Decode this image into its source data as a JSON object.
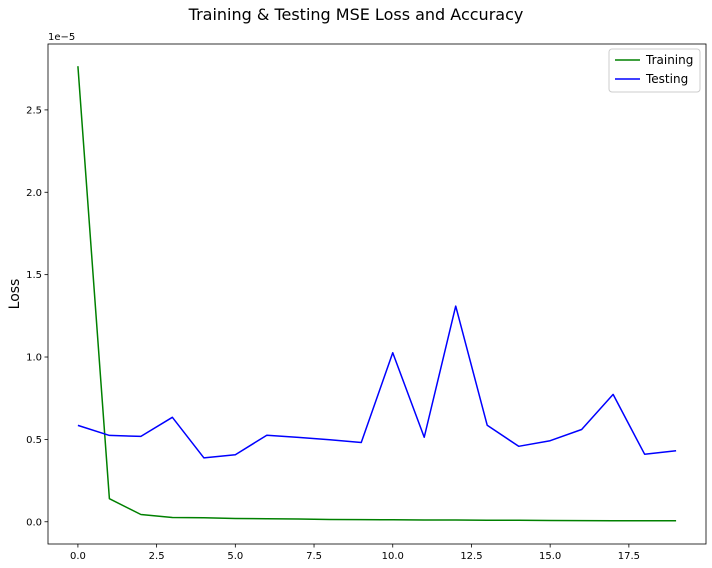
{
  "chart_data": {
    "type": "line",
    "title": "Training & Testing MSE Loss and Accuracy",
    "xlabel": "",
    "ylabel": "Loss",
    "offset_text": "1e−5",
    "x": [
      0,
      1,
      2,
      3,
      4,
      5,
      6,
      7,
      8,
      9,
      10,
      11,
      12,
      13,
      14,
      15,
      16,
      17,
      18,
      19
    ],
    "xlim": [
      -0.95,
      19.95
    ],
    "ylim": [
      -1.35e-06,
      2.9e-05
    ],
    "x_ticks": [
      0.0,
      2.5,
      5.0,
      7.5,
      10.0,
      12.5,
      15.0,
      17.5
    ],
    "x_tick_labels": [
      "0.0",
      "2.5",
      "5.0",
      "7.5",
      "10.0",
      "12.5",
      "15.0",
      "17.5"
    ],
    "y_ticks": [
      0,
      5e-06,
      1e-05,
      1.5e-05,
      2e-05,
      2.5e-05
    ],
    "y_tick_labels": [
      "0.0",
      "0.5",
      "1.0",
      "1.5",
      "2.0",
      "2.5"
    ],
    "grid": false,
    "legend_position": "top-right",
    "series": [
      {
        "name": "Training",
        "color": "#008000",
        "values": [
          2.765e-05,
          1.4e-06,
          4.4e-07,
          2.6e-07,
          2.4e-07,
          2e-07,
          1.8e-07,
          1.7e-07,
          1.4e-07,
          1.3e-07,
          1.2e-07,
          1.1e-07,
          1.1e-07,
          9e-08,
          9e-08,
          8e-08,
          7e-08,
          6e-08,
          6e-08,
          6e-08
        ]
      },
      {
        "name": "Testing",
        "color": "#0000ff",
        "values": [
          5.85e-06,
          5.24e-06,
          5.18e-06,
          6.34e-06,
          3.88e-06,
          4.07e-06,
          5.25e-06,
          5.12e-06,
          4.98e-06,
          4.81e-06,
          1.026e-05,
          5.13e-06,
          1.309e-05,
          5.86e-06,
          4.58e-06,
          4.92e-06,
          5.6e-06,
          7.73e-06,
          4.1e-06,
          4.31e-06
        ]
      }
    ]
  }
}
